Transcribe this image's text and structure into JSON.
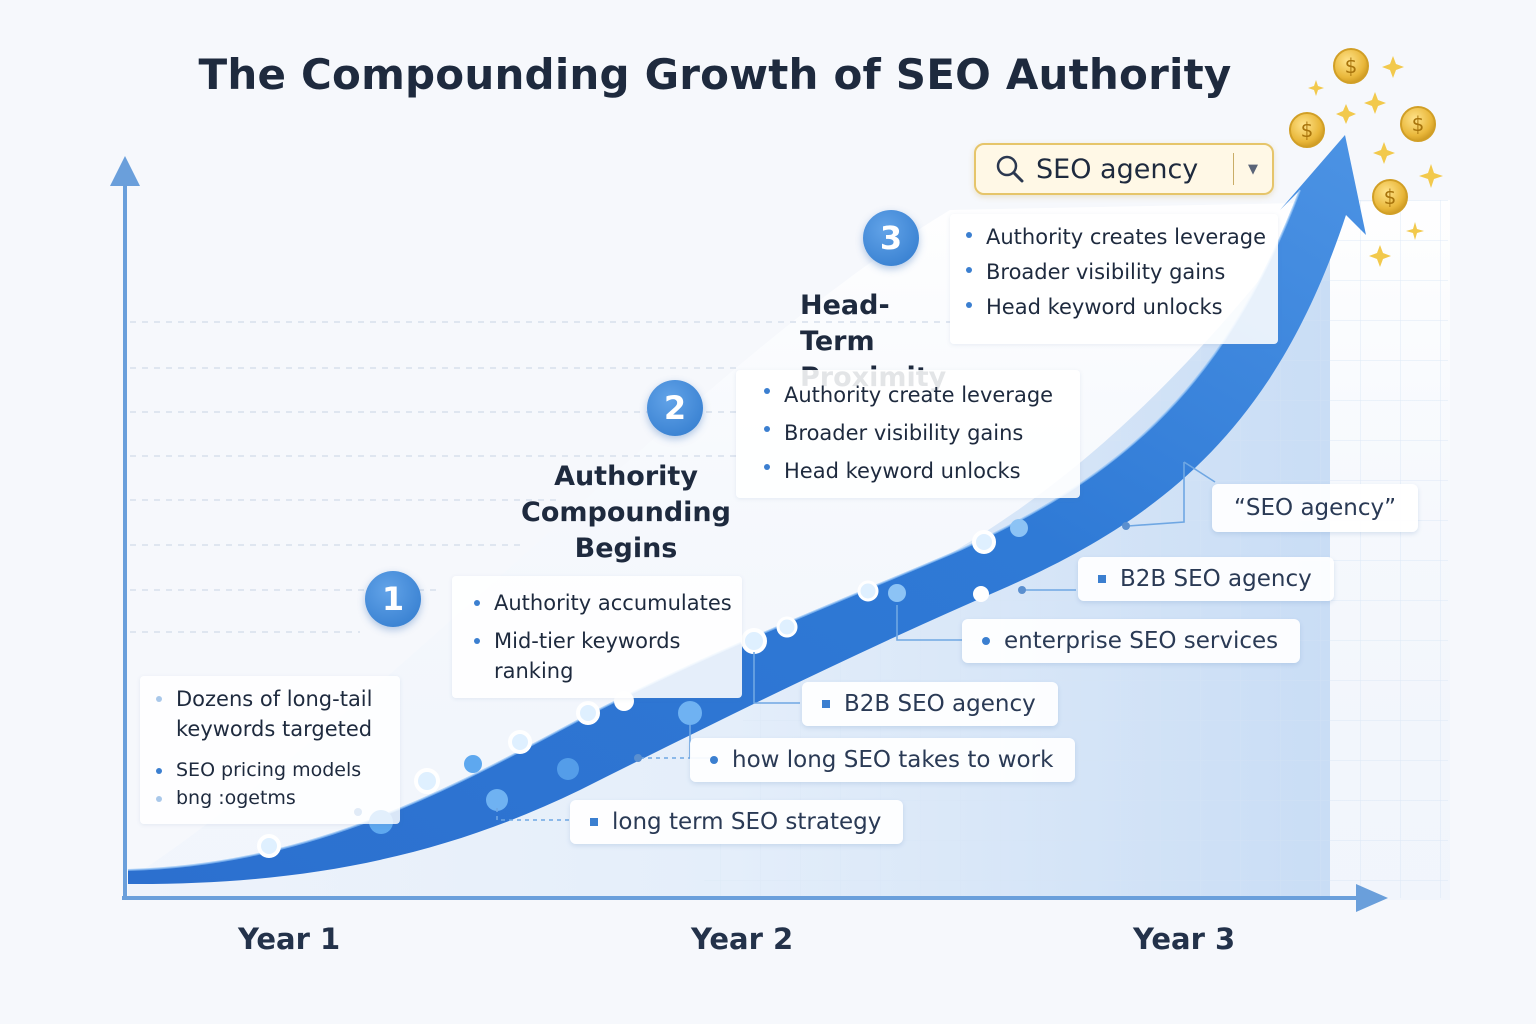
{
  "title": "The Compounding Growth of SEO Authority",
  "search": {
    "query": "SEO agency"
  },
  "colors": {
    "accent": "#2f79cc",
    "curve_dark": "#2a6fcf",
    "curve_light": "#5fa0ea",
    "gold": "#e2b233",
    "text": "#1e2a3e"
  },
  "icons": {
    "search": "magnifier-icon",
    "dropdown": "chevron-down-icon",
    "coin": "dollar-coin-icon",
    "sparkle": "sparkle-icon"
  },
  "stages": [
    {
      "number": "1",
      "label": "",
      "bullets": [
        "Authority accumulates",
        "Mid-tier keywords ranking"
      ]
    },
    {
      "number": "2",
      "label": "Authority Compounding Begins",
      "bullets": [
        "Authority create leverage",
        "Broader visibility gains",
        "Head keyword unlocks"
      ]
    },
    {
      "number": "3",
      "label": "Head-Term Proximity",
      "bullets": [
        "Authority creates leverage",
        "Broader visibility gains",
        "Head keyword unlocks"
      ]
    }
  ],
  "early_notes": [
    "Dozens of long-tail keywords targeted",
    "SEO pricing models",
    "bng :ogetms"
  ],
  "keywords": [
    "long term SEO strategy",
    "how long SEO takes to work",
    "B2B SEO agency",
    "enterprise SEO services",
    "B2B SEO agency",
    "“SEO agency”"
  ],
  "x_axis": {
    "labels": [
      "Year 1",
      "Year 2",
      "Year 3"
    ]
  }
}
